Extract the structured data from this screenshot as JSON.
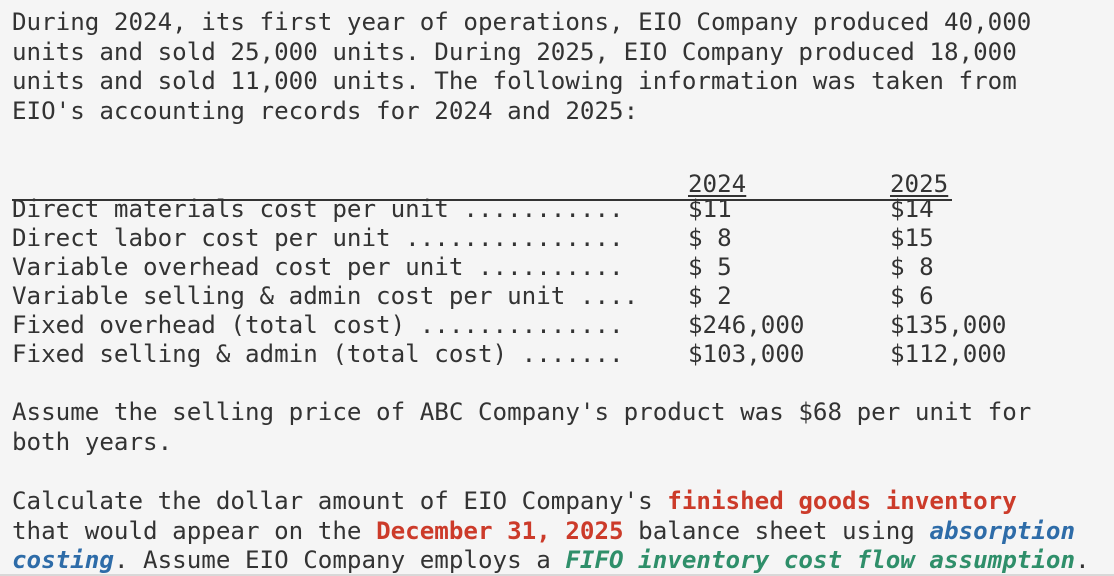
{
  "intro": "During 2024, its first year of operations, EIO Company produced 40,000\nunits and sold 25,000 units. During 2025, EIO Company produced 18,000\nunits and sold 11,000 units. The following information was taken from\nEIO's accounting records for 2024 and 2025:",
  "table": {
    "headers": {
      "year1": "2024",
      "year2": "2025"
    },
    "rows": [
      {
        "label": "Direct materials cost per unit ...........",
        "v2024": "$11",
        "v2025": "$14"
      },
      {
        "label": "Direct labor cost per unit ...............",
        "v2024": "$ 8",
        "v2025": "$15"
      },
      {
        "label": "Variable overhead cost per unit ..........",
        "v2024": "$ 5",
        "v2025": "$ 8"
      },
      {
        "label": "Variable selling & admin cost per unit ....",
        "v2024": "$ 2",
        "v2025": "$ 6"
      },
      {
        "label": "Fixed overhead (total cost) ..............",
        "v2024": "$246,000",
        "v2025": "$135,000"
      },
      {
        "label": "Fixed selling & admin (total cost) .......",
        "v2024": "$103,000",
        "v2025": "$112,000"
      }
    ]
  },
  "assumption": "Assume the selling price of ABC Company's product was $68 per unit for\nboth years.",
  "question": {
    "part1": "Calculate the dollar amount of EIO Company's ",
    "highlight1": "finished goods inventory",
    "part2": "\nthat would appear on the ",
    "highlight2": "December 31, 2025",
    "part3": " balance sheet using ",
    "highlight3": "absorption\ncosting",
    "part4": ". Assume EIO Company employs a ",
    "highlight4": "FIFO inventory cost flow assumption",
    "part5": "."
  },
  "colors": {
    "text": "#333333",
    "red": "#cc3b2a",
    "blue": "#2e6ca8",
    "green": "#2f8f6a",
    "background": "#f5f5f5"
  }
}
